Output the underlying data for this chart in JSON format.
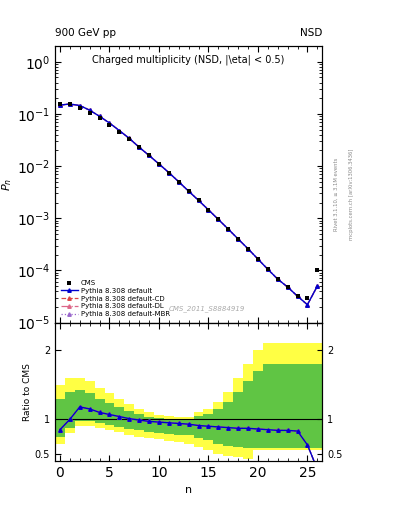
{
  "title": "Charged multiplicity (NSD, |\\eta| < 0.5)",
  "top_left_label": "900 GeV pp",
  "top_right_label": "NSD",
  "ylabel_main": "$P_n$",
  "ylabel_ratio": "Ratio to CMS",
  "xlabel": "n",
  "right_label1": "Rivet 3.1.10, ≥ 3.1M events",
  "right_label2": "mcplots.cern.ch [arXiv:1306.3436]",
  "watermark": "CMS_2011_S8884919",
  "cms_data_x": [
    0,
    1,
    2,
    3,
    4,
    5,
    6,
    7,
    8,
    9,
    10,
    11,
    12,
    13,
    14,
    15,
    16,
    17,
    18,
    19,
    20,
    21,
    22,
    23,
    24,
    25,
    26
  ],
  "cms_data_y": [
    0.155,
    0.155,
    0.13,
    0.105,
    0.082,
    0.062,
    0.046,
    0.033,
    0.023,
    0.016,
    0.011,
    0.0075,
    0.005,
    0.0033,
    0.0022,
    0.00145,
    0.00095,
    0.00062,
    0.0004,
    0.00026,
    0.000165,
    0.000105,
    6.8e-05,
    4.8e-05,
    3.2e-05,
    3e-05,
    0.0001
  ],
  "py_x": [
    0,
    1,
    2,
    3,
    4,
    5,
    6,
    7,
    8,
    9,
    10,
    11,
    12,
    13,
    14,
    15,
    16,
    17,
    18,
    19,
    20,
    21,
    22,
    23,
    24,
    25,
    26
  ],
  "py_default_y": [
    0.148,
    0.155,
    0.145,
    0.118,
    0.09,
    0.067,
    0.048,
    0.034,
    0.023,
    0.016,
    0.011,
    0.0075,
    0.005,
    0.0033,
    0.0022,
    0.00145,
    0.00095,
    0.00062,
    0.0004,
    0.00026,
    0.000165,
    0.000105,
    6.8e-05,
    4.8e-05,
    3.2e-05,
    2.2e-05,
    5e-05
  ],
  "py_cd_y": [
    0.148,
    0.155,
    0.145,
    0.118,
    0.09,
    0.067,
    0.048,
    0.034,
    0.023,
    0.016,
    0.011,
    0.0075,
    0.005,
    0.0033,
    0.0022,
    0.00145,
    0.00095,
    0.00062,
    0.0004,
    0.00026,
    0.000165,
    0.000105,
    6.8e-05,
    4.8e-05,
    3.2e-05,
    2.2e-05,
    5e-05
  ],
  "py_dl_y": [
    0.148,
    0.155,
    0.145,
    0.118,
    0.09,
    0.067,
    0.048,
    0.034,
    0.023,
    0.016,
    0.011,
    0.0075,
    0.005,
    0.0033,
    0.0022,
    0.00145,
    0.00095,
    0.00062,
    0.0004,
    0.00026,
    0.000165,
    0.000105,
    6.8e-05,
    4.8e-05,
    3.2e-05,
    2.2e-05,
    5e-05
  ],
  "py_mbr_y": [
    0.148,
    0.155,
    0.145,
    0.118,
    0.09,
    0.067,
    0.048,
    0.034,
    0.023,
    0.016,
    0.011,
    0.0075,
    0.005,
    0.0033,
    0.0022,
    0.00145,
    0.00095,
    0.00062,
    0.0004,
    0.00026,
    0.000165,
    0.000105,
    6.8e-05,
    4.8e-05,
    3.2e-05,
    2.2e-05,
    5e-05
  ],
  "ratio_x": [
    0,
    1,
    2,
    3,
    4,
    5,
    6,
    7,
    8,
    9,
    10,
    11,
    12,
    13,
    14,
    15,
    16,
    17,
    18,
    19,
    20,
    21,
    22,
    23,
    24,
    25,
    26
  ],
  "ratio_y": [
    0.85,
    1.0,
    1.18,
    1.15,
    1.1,
    1.07,
    1.04,
    1.01,
    0.99,
    0.97,
    0.96,
    0.95,
    0.94,
    0.93,
    0.91,
    0.9,
    0.89,
    0.88,
    0.87,
    0.87,
    0.86,
    0.85,
    0.84,
    0.84,
    0.83,
    0.63,
    0.28
  ],
  "yband_low": [
    0.65,
    0.8,
    0.9,
    0.9,
    0.87,
    0.84,
    0.81,
    0.78,
    0.75,
    0.73,
    0.71,
    0.69,
    0.67,
    0.65,
    0.6,
    0.55,
    0.5,
    0.47,
    0.45,
    0.43,
    0.55,
    0.55,
    0.55,
    0.55,
    0.55,
    0.55,
    0.55
  ],
  "yband_high": [
    1.5,
    1.6,
    1.6,
    1.55,
    1.45,
    1.38,
    1.3,
    1.22,
    1.15,
    1.1,
    1.06,
    1.05,
    1.04,
    1.03,
    1.1,
    1.15,
    1.25,
    1.4,
    1.6,
    1.8,
    2.0,
    2.1,
    2.1,
    2.1,
    2.1,
    2.1,
    2.1
  ],
  "gband_low": [
    0.75,
    0.88,
    0.98,
    0.98,
    0.95,
    0.92,
    0.89,
    0.86,
    0.84,
    0.82,
    0.8,
    0.79,
    0.78,
    0.77,
    0.73,
    0.7,
    0.65,
    0.62,
    0.6,
    0.58,
    0.59,
    0.58,
    0.58,
    0.58,
    0.58,
    0.58,
    0.58
  ],
  "gband_high": [
    1.3,
    1.4,
    1.42,
    1.38,
    1.3,
    1.24,
    1.18,
    1.12,
    1.07,
    1.04,
    1.02,
    1.01,
    1.01,
    1.01,
    1.05,
    1.08,
    1.15,
    1.25,
    1.4,
    1.55,
    1.7,
    1.8,
    1.8,
    1.8,
    1.8,
    1.8,
    1.8
  ],
  "color_default": "#0000cc",
  "color_cd": "#dd4444",
  "color_dl": "#dd6688",
  "color_mbr": "#9966cc",
  "color_cms": "#000000",
  "color_yellow": "#ffff44",
  "color_green": "#44bb44",
  "ylim_main": [
    1e-05,
    2.0
  ],
  "ylim_ratio": [
    0.4,
    2.4
  ],
  "xlim": [
    -0.5,
    26.5
  ],
  "ratio_yticks": [
    0.5,
    1.0,
    2.0
  ],
  "ratio_yticklabels": [
    "0.5",
    "1",
    "2"
  ]
}
